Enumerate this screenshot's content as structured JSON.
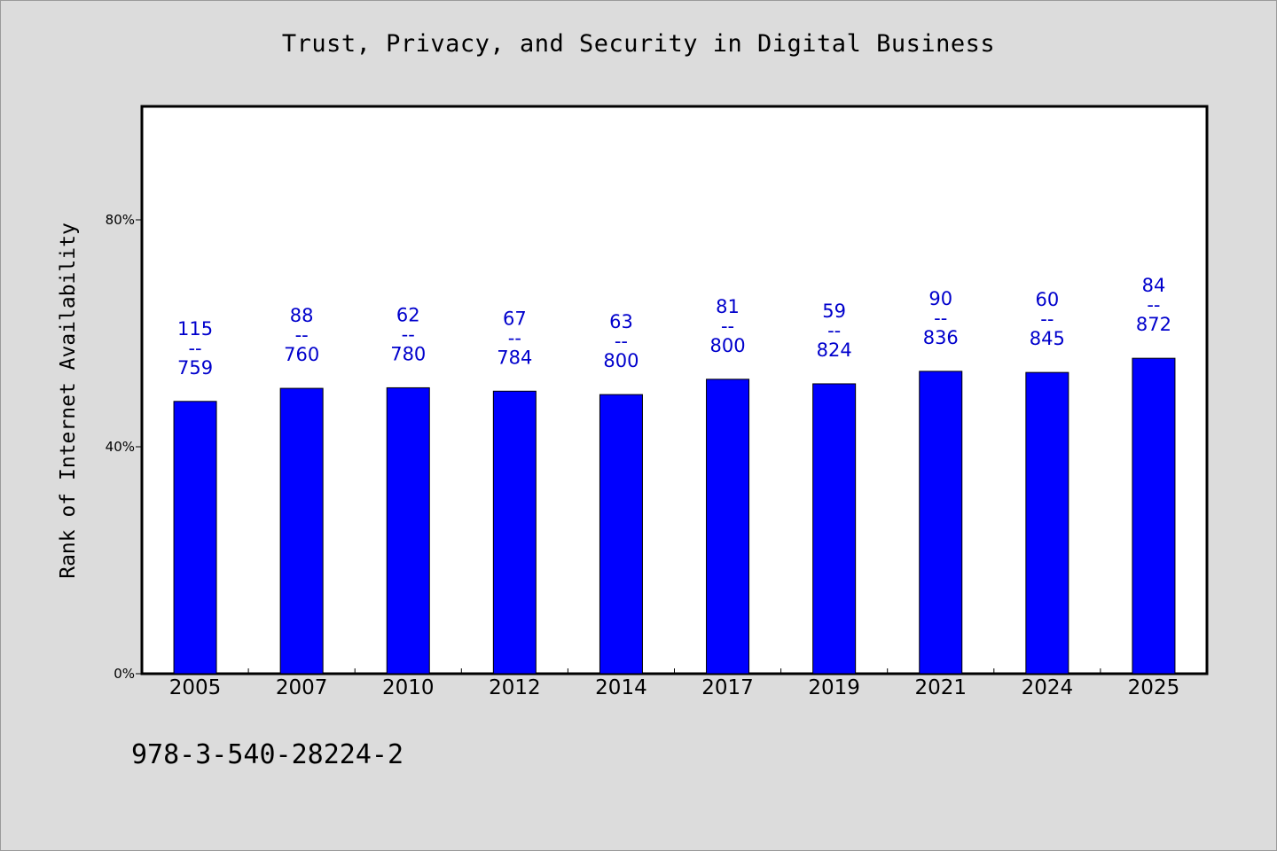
{
  "title": "Trust, Privacy, and Security in Digital Business",
  "footer": "978-3-540-28224-2",
  "colors": {
    "background": "#dcdcdc",
    "plot_background": "#ffffff",
    "bar": "#0000ff",
    "data_label": "#0000cc"
  },
  "chart_data": {
    "type": "bar",
    "title": "Trust, Privacy, and Security in Digital Business",
    "xlabel": "",
    "ylabel": "Rank of Internet Availability",
    "categories": [
      "2005",
      "2007",
      "2010",
      "2012",
      "2014",
      "2017",
      "2019",
      "2021",
      "2024",
      "2025"
    ],
    "values": [
      48,
      50.3,
      50.4,
      49.8,
      49.2,
      51.9,
      51.1,
      53.3,
      53.1,
      55.6
    ],
    "data_labels": [
      [
        "115",
        "--",
        "759"
      ],
      [
        "88",
        "--",
        "760"
      ],
      [
        "62",
        "--",
        "780"
      ],
      [
        "67",
        "--",
        "784"
      ],
      [
        "63",
        "--",
        "800"
      ],
      [
        "81",
        "--",
        "800"
      ],
      [
        "59",
        "--",
        "824"
      ],
      [
        "90",
        "--",
        "836"
      ],
      [
        "60",
        "--",
        "845"
      ],
      [
        "84",
        "--",
        "872"
      ]
    ],
    "ylim": [
      0,
      100
    ],
    "yticks": [
      0,
      40,
      80
    ],
    "ytick_labels": [
      "0%",
      "40%",
      "80%"
    ],
    "grid": false,
    "legend": "none"
  }
}
